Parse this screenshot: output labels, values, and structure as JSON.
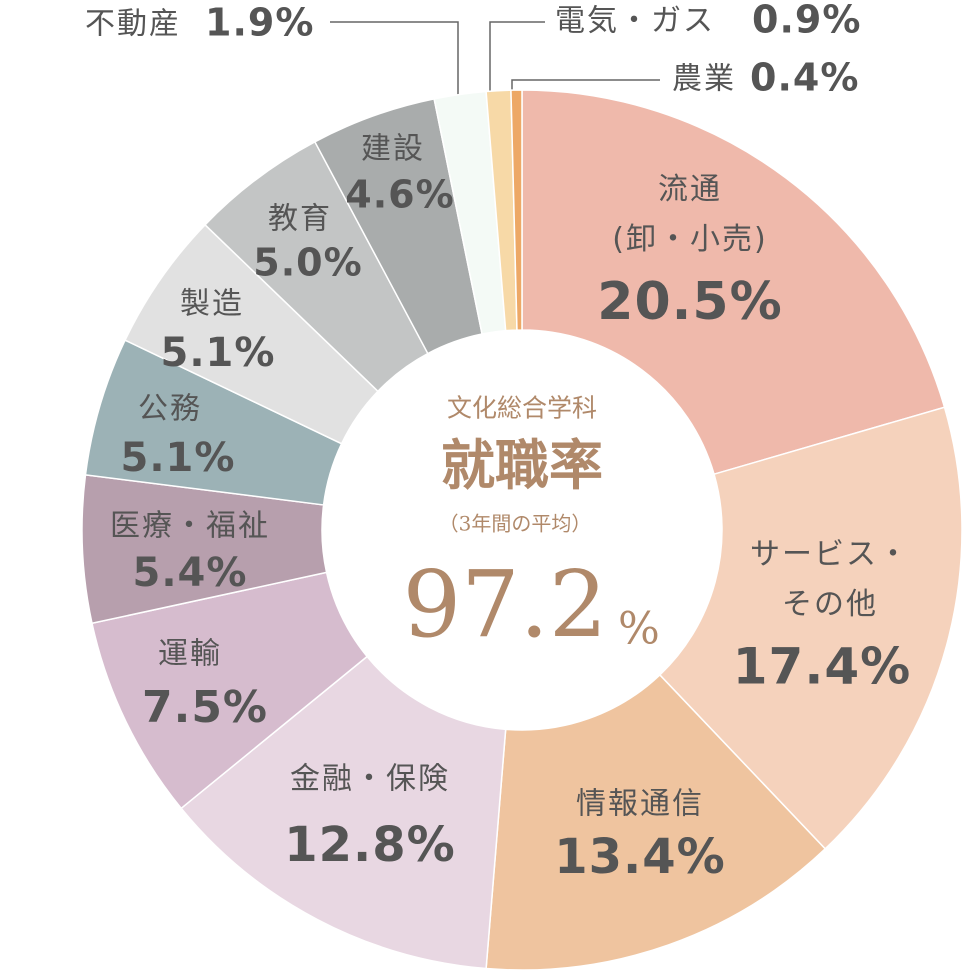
{
  "chart_data": {
    "type": "donut",
    "categories": [
      "流通\n(卸・小売)",
      "サービス・\nその他",
      "情報通信",
      "金融・保険",
      "運輸",
      "医療・福祉",
      "公務",
      "製造",
      "教育",
      "建設",
      "不動産",
      "電気・ガス",
      "農業"
    ],
    "values": [
      20.5,
      17.4,
      13.4,
      12.8,
      7.5,
      5.4,
      5.1,
      5.1,
      5.0,
      4.6,
      1.9,
      0.9,
      0.4
    ],
    "value_labels": [
      "20.5%",
      "17.4%",
      "13.4%",
      "12.8%",
      "7.5%",
      "5.4%",
      "5.1%",
      "5.1%",
      "5.0%",
      "4.6%",
      "1.9%",
      "0.9%",
      "0.4%"
    ],
    "colors": [
      "#efb9ab",
      "#f5d2bc",
      "#efc49f",
      "#e8d7e2",
      "#d6bcce",
      "#b79fad",
      "#9cb2b6",
      "#e1e1e1",
      "#c3c5c5",
      "#a9acac",
      "#f4faf6",
      "#f7d9a7",
      "#eda866"
    ],
    "center": {
      "heading": "文化総合学科",
      "title": "就職率",
      "note": "（3年間の平均）",
      "value": 97.2,
      "unit": "%"
    }
  }
}
